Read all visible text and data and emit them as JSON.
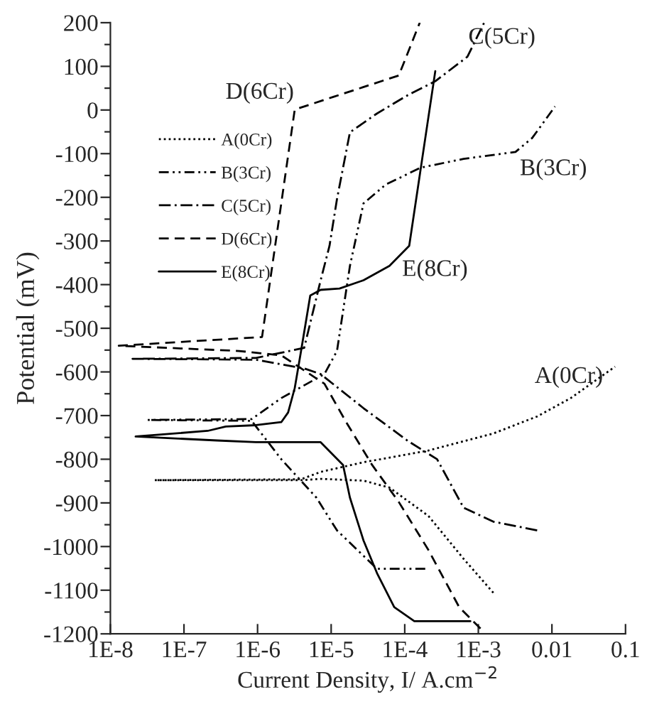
{
  "chart_data": {
    "type": "line",
    "xlabel": "Current Density, I/ A.cm$^{−2}$",
    "ylabel": "Potential (mV)",
    "log": "x",
    "xlim": [
      1e-08,
      0.1
    ],
    "ylim": [
      -1200,
      200
    ],
    "xticks": [
      {
        "value": 1e-08,
        "label": "1E-8"
      },
      {
        "value": 1e-07,
        "label": "1E-7"
      },
      {
        "value": 1e-06,
        "label": "1E-6"
      },
      {
        "value": 1e-05,
        "label": "1E-5"
      },
      {
        "value": 0.0001,
        "label": "1E-4"
      },
      {
        "value": 0.001,
        "label": "1E-3"
      },
      0.01,
      0.1
    ],
    "yticks": [
      -1200,
      {
        "value": -1150,
        "label": null
      },
      -1100,
      {
        "value": -1050,
        "label": null
      },
      -1000,
      {
        "value": -950,
        "label": null
      },
      -900,
      {
        "value": -850,
        "label": null
      },
      -800,
      {
        "value": -750,
        "label": null
      },
      -700,
      {
        "value": -650,
        "label": null
      },
      -600,
      {
        "value": -550,
        "label": null
      },
      -500,
      {
        "value": -450,
        "label": null
      },
      -400,
      {
        "value": -350,
        "label": null
      },
      -300,
      {
        "value": -250,
        "label": null
      },
      -200,
      {
        "value": -150,
        "label": null
      },
      -100,
      {
        "value": -50,
        "label": null
      },
      0,
      {
        "value": 50,
        "label": null
      },
      100,
      {
        "value": 150,
        "label": null
      },
      200
    ],
    "grid": false,
    "legend": "top left",
    "marker": "none",
    "series": [
      {
        "name": "A(0Cr)",
        "color": "#000000",
        "line_style": "dotted",
        "x": [
          0.0016,
          0.00063,
          0.00021,
          6.2e-05,
          2.75e-05,
          7.2e-06,
          3.9e-06,
          4e-08,
          3.9e-06,
          7.2e-06,
          2.75e-05,
          0.00021,
          0.0016,
          0.0063,
          0.018,
          0.072
        ],
        "values": [
          -1106,
          -1028,
          -930,
          -865,
          -849,
          -845,
          -848,
          -848,
          -846,
          -829,
          -807,
          -780,
          -741,
          -702,
          -660,
          -588
        ]
      },
      {
        "name": "B(3Cr)",
        "color": "#000000",
        "line_style": "dashdotdot",
        "x": [
          0.00019,
          4.2e-05,
          1.2e-05,
          6.3e-06,
          2.1e-06,
          8.3e-07,
          3.2e-08,
          8.3e-07,
          2.1e-06,
          8.1e-06,
          1.2e-05,
          1.8e-05,
          2.75e-05,
          5.5e-05,
          0.000165,
          0.00063,
          0.0032,
          0.0054,
          0.011
        ],
        "values": [
          -1051,
          -1051,
          -963,
          -888,
          -800,
          -712,
          -710,
          -708,
          -660,
          -605,
          -552,
          -357,
          -214,
          -171,
          -132,
          -112,
          -96,
          -64,
          8
        ]
      },
      {
        "name": "C(5Cr)",
        "color": "#000000",
        "line_style": "dashdot",
        "x": [
          0.0063,
          0.0016,
          0.00063,
          0.000275,
          0.00011,
          2.75e-05,
          7.2e-06,
          4.3e-06,
          9.5e-07,
          2e-08,
          9.5e-07,
          4.3e-06,
          7.2e-06,
          9.5e-06,
          1.2e-05,
          1.8e-05,
          4.2e-05,
          0.00011,
          0.00026,
          0.00071,
          0.0012
        ],
        "values": [
          -963,
          -943,
          -911,
          -800,
          -758,
          -683,
          -605,
          -592,
          -572,
          -570,
          -568,
          -545,
          -390,
          -311,
          -204,
          -51,
          -8,
          34,
          66,
          122,
          200
        ]
      },
      {
        "name": "D(6Cr)",
        "color": "#000000",
        "line_style": "dashed",
        "x": [
          0.00107,
          0.00055,
          0.00021,
          8.3e-05,
          3.6e-05,
          1.6e-05,
          8.1e-06,
          2.1e-06,
          5.6e-07,
          1.3e-08,
          1.15e-06,
          3.2e-06,
          1.07e-05,
          8.3e-05,
          0.00016
        ],
        "values": [
          -1188,
          -1139,
          -1008,
          -898,
          -813,
          -715,
          -627,
          -562,
          -552,
          -540,
          -520,
          1,
          30,
          79,
          200
        ]
      },
      {
        "name": "E(8Cr)",
        "color": "#000000",
        "line_style": "solid",
        "x": [
          0.00078,
          0.000135,
          7.2e-05,
          4.2e-05,
          2.75e-05,
          1.8e-05,
          1.45e-05,
          7.2e-06,
          9.5e-07,
          2.8e-07,
          2.2e-08,
          2.1e-07,
          3.7e-07,
          9.5e-07,
          2.1e-06,
          2.6e-06,
          3.2e-06,
          3.9e-06,
          5.2e-06,
          7.2e-06,
          1.3e-05,
          2.75e-05,
          6.2e-05,
          0.000115,
          0.00026
        ],
        "values": [
          -1171,
          -1171,
          -1139,
          -1061,
          -986,
          -888,
          -813,
          -761,
          -761,
          -757,
          -748,
          -735,
          -725,
          -722,
          -715,
          -693,
          -637,
          -552,
          -425,
          -412,
          -409,
          -390,
          -357,
          -311,
          89
        ]
      }
    ],
    "annotations": [
      "D(6Cr)",
      "C(5Cr)",
      "B(3Cr)",
      "E(8Cr)",
      "A(0Cr)"
    ]
  }
}
